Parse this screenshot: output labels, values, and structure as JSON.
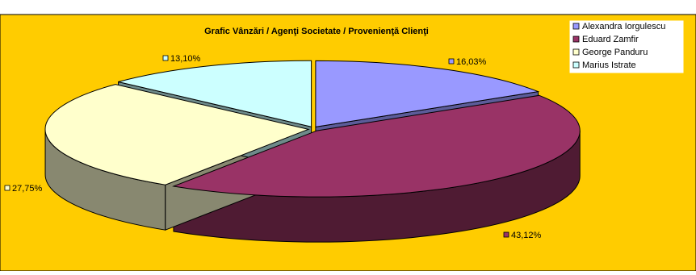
{
  "chart_data": {
    "type": "pie",
    "title": "Grafic Vânzări / Agenţi Societate / Provenienţă Clienţi",
    "legend_position": "top-right",
    "three_d": true,
    "series": [
      {
        "name": "Alexandra Iorgulescu",
        "value": 16.03,
        "label": "16,03%",
        "color": "#9999ff",
        "side": "#5c5c99"
      },
      {
        "name": "Eduard Zamfir",
        "value": 43.12,
        "label": "43,12%",
        "color": "#993366",
        "side": "#4f1b33"
      },
      {
        "name": "George Panduru",
        "value": 27.75,
        "label": "27,75%",
        "color": "#ffffcc",
        "side": "#888870"
      },
      {
        "name": "Marius Istrate",
        "value": 13.1,
        "label": "13,10%",
        "color": "#ccffff",
        "side": "#6e8a8a"
      }
    ],
    "colors": {
      "chart_area": "#ffcc00",
      "legend_bg": "#ffffff",
      "outline": "#000000"
    }
  }
}
